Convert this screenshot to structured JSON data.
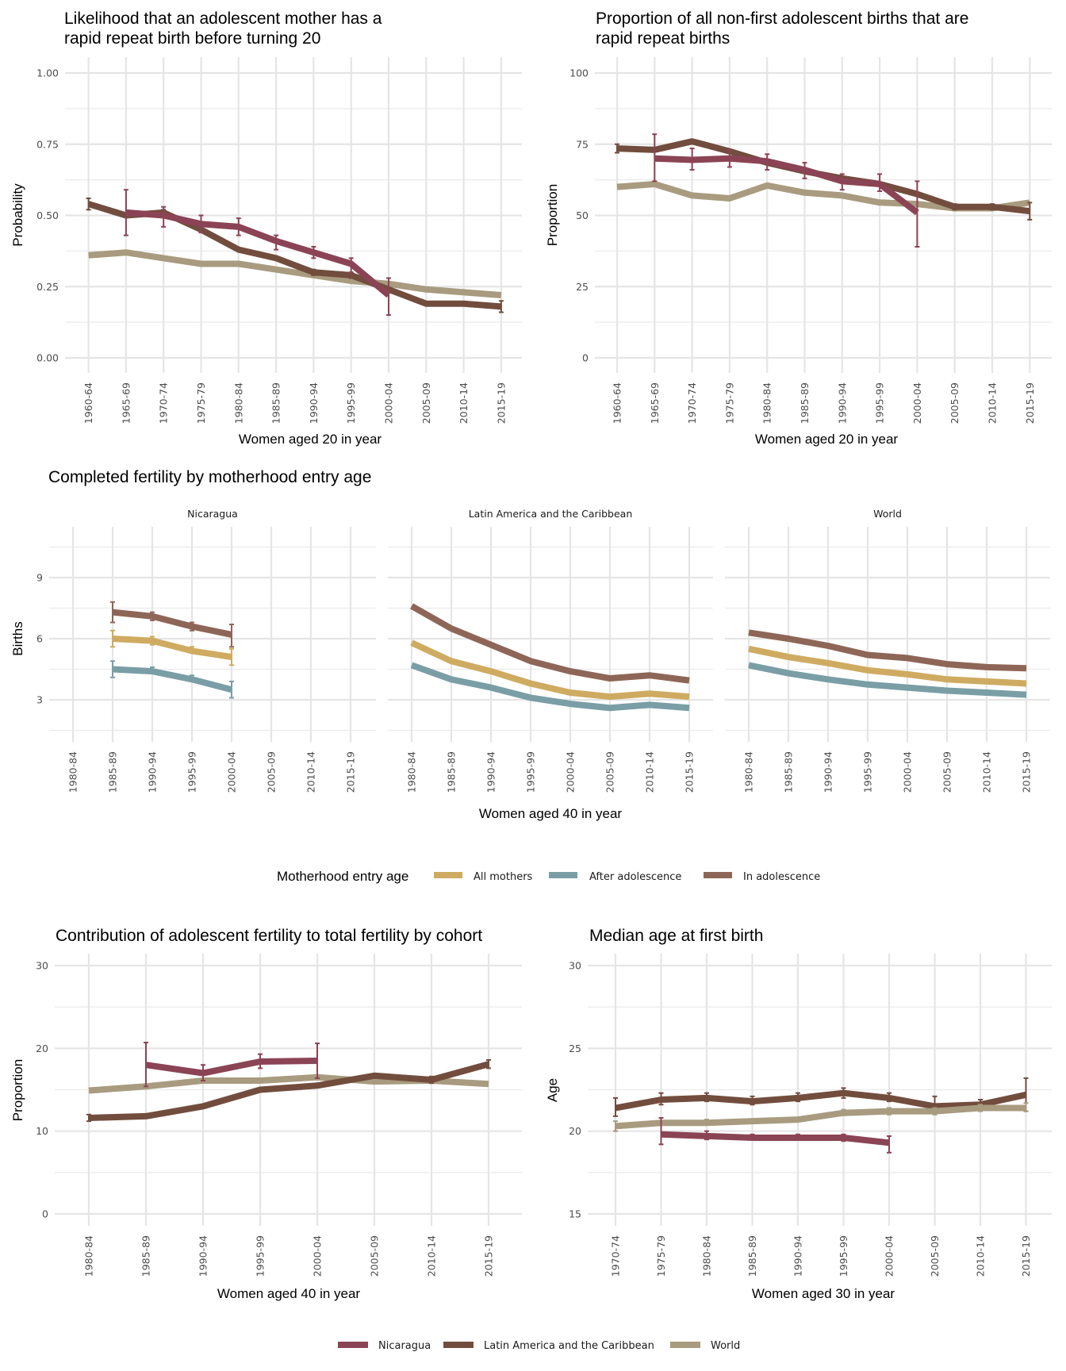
{
  "colors": {
    "Nicaragua": "#8b4455",
    "Latin America and the Caribbean": "#724d3e",
    "World": "#a89b7f",
    "All mothers": "#cfab61",
    "After adolescence": "#7a9ea6",
    "In adolescence": "#8e6657"
  },
  "chart_data": [
    {
      "id": "rapid-repeat-likelihood",
      "type": "line",
      "title": "Likelihood that an adolescent mother has a rapid repeat birth before turning 20",
      "title_lines": [
        "Likelihood that an adolescent mother has a",
        "rapid repeat birth before turning 20"
      ],
      "xlabel": "Women aged 20 in year",
      "ylabel": "Probability",
      "ylim": [
        0,
        1
      ],
      "yticks": [
        0,
        0.25,
        0.5,
        0.75,
        1.0
      ],
      "ytick_labels": [
        "0.00",
        "0.25",
        "0.50",
        "0.75",
        "1.00"
      ],
      "grid": true,
      "categories": [
        "1960-64",
        "1965-69",
        "1970-74",
        "1975-79",
        "1980-84",
        "1985-89",
        "1990-94",
        "1995-99",
        "2000-04",
        "2005-09",
        "2010-14",
        "2015-19"
      ],
      "series": [
        {
          "name": "World",
          "values": [
            0.36,
            0.37,
            0.35,
            0.33,
            0.33,
            0.31,
            0.29,
            0.27,
            0.26,
            0.24,
            0.23,
            0.22
          ]
        },
        {
          "name": "Latin America and the Caribbean",
          "values": [
            0.54,
            0.5,
            0.51,
            0.45,
            0.38,
            0.35,
            0.3,
            0.29,
            0.24,
            0.19,
            0.19,
            0.18
          ],
          "err_low": [
            0.52,
            null,
            0.5,
            0.44,
            null,
            null,
            0.29,
            0.28,
            null,
            null,
            0.185,
            0.16
          ],
          "err_high": [
            0.56,
            null,
            0.52,
            0.46,
            null,
            null,
            0.31,
            0.3,
            null,
            null,
            0.195,
            0.2
          ]
        },
        {
          "name": "Nicaragua",
          "values": [
            null,
            0.51,
            0.5,
            0.47,
            0.46,
            0.41,
            0.37,
            0.33,
            0.22,
            null,
            null,
            null
          ],
          "err_low": [
            null,
            0.43,
            0.46,
            0.44,
            0.43,
            0.38,
            0.35,
            0.3,
            0.15,
            null,
            null,
            null
          ],
          "err_high": [
            null,
            0.59,
            0.53,
            0.5,
            0.49,
            0.43,
            0.39,
            0.35,
            0.28,
            null,
            null,
            null
          ]
        }
      ]
    },
    {
      "id": "rapid-repeat-proportion",
      "type": "line",
      "title": "Proportion of all non-first adolescent births that are rapid repeat births",
      "title_lines": [
        "Proportion of all non-first adolescent births that are",
        "rapid repeat births"
      ],
      "xlabel": "Women aged 20 in year",
      "ylabel": "Proportion",
      "ylim": [
        0,
        100
      ],
      "yticks": [
        0,
        25,
        50,
        75,
        100
      ],
      "ytick_labels": [
        "0",
        "25",
        "50",
        "75",
        "100"
      ],
      "grid": true,
      "categories": [
        "1960-64",
        "1965-69",
        "1970-74",
        "1975-79",
        "1980-84",
        "1985-89",
        "1990-94",
        "1995-99",
        "2000-04",
        "2005-09",
        "2010-14",
        "2015-19"
      ],
      "series": [
        {
          "name": "World",
          "values": [
            60,
            61,
            57,
            56,
            60.5,
            58,
            57,
            54.5,
            54,
            52.5,
            52.5,
            54.5
          ]
        },
        {
          "name": "Latin America and the Caribbean",
          "values": [
            73.5,
            73,
            76,
            72.5,
            68.5,
            65.5,
            63,
            61,
            57.5,
            53,
            53,
            51.5
          ],
          "err_low": [
            72,
            null,
            null,
            null,
            null,
            null,
            null,
            null,
            null,
            52,
            52,
            48.5
          ],
          "err_high": [
            75,
            null,
            null,
            null,
            null,
            null,
            null,
            null,
            null,
            54,
            54,
            54.5
          ]
        },
        {
          "name": "Nicaragua",
          "values": [
            null,
            70,
            69.5,
            70,
            69,
            66,
            62,
            61,
            51,
            null,
            null,
            null
          ],
          "err_low": [
            null,
            62,
            66,
            67,
            66,
            63,
            59,
            58.5,
            39,
            null,
            null,
            null
          ],
          "err_high": [
            null,
            78.5,
            73.5,
            73,
            71.5,
            68.5,
            64.5,
            64.5,
            62,
            null,
            null,
            null
          ]
        }
      ]
    },
    {
      "id": "completed-fertility",
      "type": "line",
      "title": "Completed fertility by motherhood entry age",
      "xlabel": "Women aged 40 in year",
      "ylabel": "Births",
      "ylim": [
        1.1,
        11.2
      ],
      "yticks": [
        3,
        6,
        9
      ],
      "ytick_labels": [
        "3",
        "6",
        "9"
      ],
      "grid": true,
      "legend": {
        "title": "Motherhood entry age",
        "placement": "bottom",
        "entries": [
          "All mothers",
          "After adolescence",
          "In adolescence"
        ]
      },
      "categories": [
        "1980-84",
        "1985-89",
        "1990-94",
        "1995-99",
        "2000-04",
        "2005-09",
        "2010-14",
        "2015-19"
      ],
      "facets": [
        {
          "name": "Nicaragua",
          "series": [
            {
              "name": "In adolescence",
              "values": [
                null,
                7.3,
                7.1,
                6.6,
                6.2,
                null,
                null,
                null
              ],
              "err_low": [
                null,
                6.8,
                6.9,
                6.4,
                5.6,
                null,
                null,
                null
              ],
              "err_high": [
                null,
                7.8,
                7.3,
                6.8,
                6.7,
                null,
                null,
                null
              ]
            },
            {
              "name": "All mothers",
              "values": [
                null,
                6.0,
                5.9,
                5.4,
                5.1,
                null,
                null,
                null
              ],
              "err_low": [
                null,
                5.6,
                5.7,
                5.3,
                4.7,
                null,
                null,
                null
              ],
              "err_high": [
                null,
                6.4,
                6.1,
                5.6,
                5.5,
                null,
                null,
                null
              ]
            },
            {
              "name": "After adolescence",
              "values": [
                null,
                4.5,
                4.4,
                4.0,
                3.5,
                null,
                null,
                null
              ],
              "err_low": [
                null,
                4.1,
                4.3,
                3.9,
                3.1,
                null,
                null,
                null
              ],
              "err_high": [
                null,
                4.9,
                4.6,
                4.2,
                3.9,
                null,
                null,
                null
              ]
            }
          ]
        },
        {
          "name": "Latin America and the Caribbean",
          "series": [
            {
              "name": "In adolescence",
              "values": [
                7.6,
                6.5,
                5.7,
                4.9,
                4.4,
                4.05,
                4.2,
                3.95
              ]
            },
            {
              "name": "All mothers",
              "values": [
                5.8,
                4.9,
                4.4,
                3.8,
                3.35,
                3.15,
                3.3,
                3.15
              ]
            },
            {
              "name": "After adolescence",
              "values": [
                4.7,
                4.0,
                3.6,
                3.1,
                2.8,
                2.6,
                2.75,
                2.6
              ]
            }
          ]
        },
        {
          "name": "World",
          "series": [
            {
              "name": "In adolescence",
              "values": [
                6.3,
                6.0,
                5.65,
                5.2,
                5.05,
                4.75,
                4.6,
                4.55
              ]
            },
            {
              "name": "All mothers",
              "values": [
                5.5,
                5.1,
                4.8,
                4.45,
                4.25,
                4.0,
                3.9,
                3.8
              ]
            },
            {
              "name": "After adolescence",
              "values": [
                4.7,
                4.3,
                4.0,
                3.75,
                3.6,
                3.45,
                3.35,
                3.25
              ]
            }
          ]
        }
      ]
    },
    {
      "id": "adolescent-contribution",
      "type": "line",
      "title": "Contribution of adolescent fertility to total fertility by cohort",
      "xlabel": "Women aged 40 in year",
      "ylabel": "Proportion",
      "ylim": [
        0,
        30
      ],
      "yticks": [
        0,
        10,
        20,
        30
      ],
      "ytick_labels": [
        "0",
        "10",
        "20",
        "30"
      ],
      "grid": true,
      "categories": [
        "1980-84",
        "1985-89",
        "1990-94",
        "1995-99",
        "2000-04",
        "2005-09",
        "2010-14",
        "2015-19"
      ],
      "series": [
        {
          "name": "World",
          "values": [
            14.9,
            15.4,
            16.1,
            16.1,
            16.5,
            16.0,
            16.1,
            15.7
          ]
        },
        {
          "name": "Latin America and the Caribbean",
          "values": [
            11.6,
            11.8,
            13.0,
            15.0,
            15.5,
            16.7,
            16.2,
            18.1
          ],
          "err_low": [
            11.2,
            null,
            null,
            null,
            null,
            null,
            15.8,
            17.6
          ],
          "err_high": [
            12.0,
            null,
            null,
            null,
            null,
            null,
            16.6,
            18.6
          ]
        },
        {
          "name": "Nicaragua",
          "values": [
            null,
            18.0,
            17.0,
            18.4,
            18.5,
            null,
            null,
            null
          ],
          "err_low": [
            null,
            15.4,
            16.1,
            17.6,
            16.4,
            null,
            null,
            null
          ],
          "err_high": [
            null,
            20.7,
            18.0,
            19.3,
            20.6,
            null,
            null,
            null
          ]
        }
      ]
    },
    {
      "id": "median-age-first-birth",
      "type": "line",
      "title": "Median age at first birth",
      "xlabel": "Women aged 30 in year",
      "ylabel": "Age",
      "ylim": [
        15,
        30
      ],
      "yticks": [
        15,
        20,
        25,
        30
      ],
      "ytick_labels": [
        "15",
        "20",
        "25",
        "30"
      ],
      "grid": true,
      "legend": {
        "placement": "bottom",
        "entries": [
          "Nicaragua",
          "Latin America and the Caribbean",
          "World"
        ]
      },
      "categories": [
        "1970-74",
        "1975-79",
        "1980-84",
        "1985-89",
        "1990-94",
        "1995-99",
        "2000-04",
        "2005-09",
        "2010-14",
        "2015-19"
      ],
      "series": [
        {
          "name": "Latin America and the Caribbean",
          "values": [
            21.4,
            21.9,
            22.0,
            21.8,
            22.0,
            22.3,
            22.0,
            21.5,
            21.6,
            22.2
          ],
          "err_low": [
            20.9,
            21.6,
            21.8,
            21.6,
            21.8,
            22.0,
            21.8,
            21.1,
            21.4,
            21.2
          ],
          "err_high": [
            22.0,
            22.3,
            22.3,
            22.1,
            22.3,
            22.6,
            22.3,
            22.1,
            21.9,
            23.2
          ]
        },
        {
          "name": "World",
          "values": [
            20.3,
            20.5,
            20.5,
            20.6,
            20.7,
            21.1,
            21.2,
            21.2,
            21.4,
            21.4
          ],
          "err_low": [
            20.0,
            null,
            20.4,
            null,
            null,
            21.0,
            21.0,
            21.0,
            21.2,
            21.2
          ],
          "err_high": [
            20.6,
            null,
            20.7,
            null,
            null,
            21.3,
            21.4,
            21.4,
            21.6,
            21.7
          ]
        },
        {
          "name": "Nicaragua",
          "values": [
            null,
            19.8,
            19.7,
            19.6,
            19.6,
            19.6,
            19.3,
            null,
            null,
            null
          ],
          "err_low": [
            null,
            19.2,
            19.5,
            19.5,
            19.5,
            19.4,
            18.7,
            null,
            null,
            null
          ],
          "err_high": [
            null,
            20.8,
            20.0,
            19.8,
            19.8,
            19.8,
            19.7,
            null,
            null,
            null
          ]
        }
      ]
    }
  ]
}
